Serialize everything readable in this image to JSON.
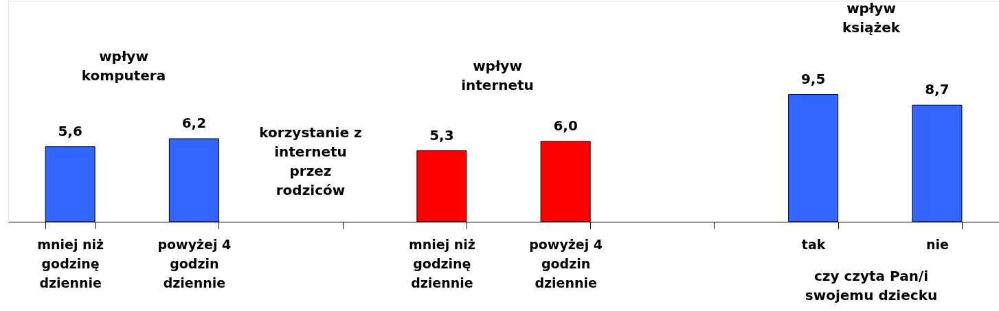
{
  "chart_data": {
    "type": "bar",
    "categories": [
      "mniej niż godzinę dziennie",
      "powyżej 4 godzin dziennie",
      null,
      "mniej niż godzinę dziennie",
      "powyżej 4 godzin dziennie",
      null,
      "tak",
      "nie"
    ],
    "values": [
      5.6,
      6.2,
      null,
      5.3,
      6.0,
      null,
      9.5,
      8.7
    ],
    "value_labels": [
      "5,6",
      "6,2",
      null,
      "5,3",
      "6,0",
      null,
      "9,5",
      "8,7"
    ],
    "colors": [
      "#3366ff",
      "#3366ff",
      "#3366ff",
      "#ff0000",
      "#ff0000",
      "#ff0000",
      "#3366ff",
      "#3366ff"
    ],
    "ylim": [
      0,
      16.5
    ],
    "tick_labels": "x",
    "grid": false,
    "annotations": [
      "wpływ komputera",
      "korzystanie z internetu przez rodziców",
      "wpływ internetu",
      "wpływ książek",
      "czy czyta Pan/i swojemu dziecku"
    ]
  }
}
